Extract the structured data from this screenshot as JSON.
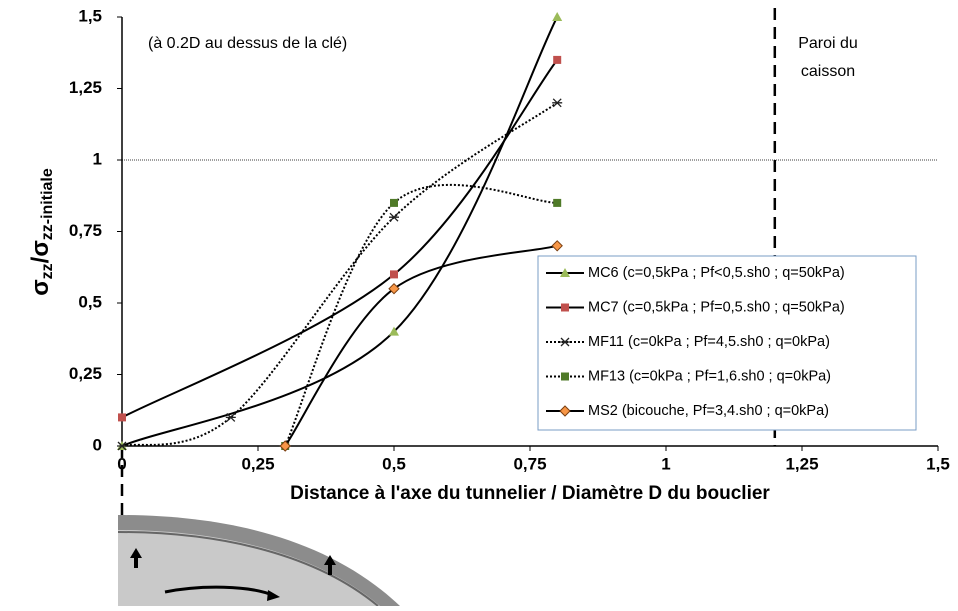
{
  "chart_data": {
    "type": "line",
    "xlabel": "Distance à l'axe du tunnelier / Diamètre D du bouclier",
    "ylabel": [
      "σ",
      "zz",
      "/σ",
      "zz-initiale"
    ],
    "annotations": [
      "(à 0.2D au dessus de la clé)",
      "Paroi du",
      "caisson"
    ],
    "xlim": [
      0,
      1.5
    ],
    "ylim": [
      0,
      1.5
    ],
    "xticks": [
      0,
      {
        "value": 0.25,
        "label": "0,25"
      },
      {
        "value": 0.5,
        "label": "0,5"
      },
      {
        "value": 0.75,
        "label": "0,75"
      },
      1,
      {
        "value": 1.25,
        "label": "1,25"
      },
      {
        "value": 1.5,
        "label": "1,5"
      }
    ],
    "yticks": [
      0,
      {
        "value": 0.25,
        "label": "0,25"
      },
      {
        "value": 0.5,
        "label": "0,5"
      },
      {
        "value": 0.75,
        "label": "0,75"
      },
      1,
      {
        "value": 1.25,
        "label": "1,25"
      },
      {
        "value": 1.5,
        "label": "1,5"
      }
    ],
    "reference_y": 1,
    "wall_x": 1.2,
    "series": [
      {
        "name": "MC6 (c=0,5kPa ; Pf<0,5.sh0 ; q=50kPa)",
        "color": "#9bbb59",
        "marker": "triangle",
        "dash": "solid",
        "x": [
          0,
          0.5,
          0.8
        ],
        "values": [
          0,
          0.4,
          1.5
        ]
      },
      {
        "name": "MC7 (c=0,5kPa ; Pf=0,5.sh0 ; q=50kPa)",
        "color": "#c0504d",
        "marker": "square",
        "dash": "solid",
        "x": [
          0,
          0.5,
          0.8
        ],
        "values": [
          0.1,
          0.6,
          1.35
        ]
      },
      {
        "name": "MF11 (c=0kPa ; Pf=4,5.sh0 ; q=0kPa)",
        "color": "#222222",
        "marker": "star",
        "dash": "dotted",
        "x": [
          0,
          0.2,
          0.5,
          0.8
        ],
        "values": [
          0,
          0.1,
          0.8,
          1.2
        ]
      },
      {
        "name": "MF13 (c=0kPa ; Pf=1,6.sh0 ; q=0kPa)",
        "color": "#4f7a28",
        "marker": "square",
        "dash": "dotted",
        "x": [
          0.3,
          0.5,
          0.8
        ],
        "values": [
          0,
          0.85,
          0.85
        ]
      },
      {
        "name": "MS2 (bicouche, Pf=3,4.sh0 ; q=0kPa)",
        "color": "#f79646",
        "marker": "diamond",
        "dash": "solid",
        "x": [
          0.3,
          0.5,
          0.8
        ],
        "values": [
          0,
          0.55,
          0.7
        ]
      }
    ]
  }
}
